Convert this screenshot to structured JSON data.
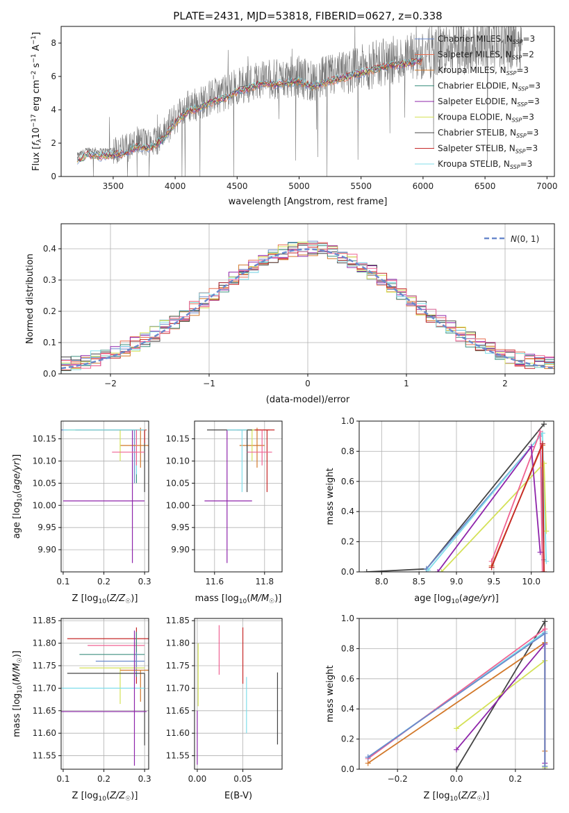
{
  "colors": {
    "Chabrier MILES": "#6a89cc",
    "Salpeter MILES": "#e76f51",
    "Kroupa MILES": "#d2782a",
    "Chabrier ELODIE": "#3b8f7f",
    "Salpeter ELODIE": "#8e24aa",
    "Kroupa ELODIE": "#d4e157",
    "Chabrier STELIB": "#444444",
    "Salpeter STELIB": "#c62828",
    "Kroupa STELIB": "#80deea",
    "Pink": "#f06292"
  },
  "chart_data": [
    {
      "id": "spectrum",
      "type": "line",
      "title": "PLATE=2431, MJD=53818, FIBERID=0627, z=0.338",
      "xlabel": "wavelength [Angstrom, rest frame]",
      "ylabel": "Flux [f_λ10^-17 erg cm^-2 s^-1 A^-1]",
      "xlim": [
        3080,
        7060
      ],
      "ylim": [
        0,
        9
      ],
      "xticks": [
        3500,
        4000,
        4500,
        5000,
        5500,
        6000,
        6500,
        7000
      ],
      "yticks": [
        0,
        2,
        4,
        6,
        8
      ],
      "grid": false,
      "legend_placement": "top-right",
      "data_envelope": {
        "x": [
          3200,
          3300,
          3400,
          3500,
          3600,
          3700,
          3800,
          3900,
          4000,
          4100,
          4200,
          4300,
          4400,
          4500,
          4600,
          4700,
          4800,
          4900,
          5000,
          5100,
          5200,
          5300,
          5400,
          5500,
          5600,
          5700,
          5800,
          5900,
          6000,
          6100,
          6200,
          6300,
          6400,
          6500,
          6600,
          6700,
          6800
        ],
        "y": [
          1.2,
          1.6,
          1.5,
          1.6,
          1.7,
          2.1,
          2.0,
          2.5,
          3.5,
          4.2,
          4.4,
          4.8,
          5.0,
          5.4,
          5.6,
          5.9,
          5.8,
          5.9,
          6.0,
          5.7,
          5.9,
          6.1,
          6.3,
          6.5,
          6.7,
          6.9,
          7.0,
          7.1,
          7.3,
          7.5,
          7.6,
          7.7,
          7.8,
          7.9,
          8.0,
          8.1,
          8.2
        ]
      },
      "series": [
        {
          "name": "Chabrier MILES, N_SSP=3"
        },
        {
          "name": "Salpeter MILES, N_SSP=2"
        },
        {
          "name": "Kroupa MILES, N_SSP=3"
        },
        {
          "name": "Chabrier ELODIE, N_SSP=3"
        },
        {
          "name": "Salpeter ELODIE, N_SSP=3"
        },
        {
          "name": "Kroupa ELODIE, N_SSP=3"
        },
        {
          "name": "Chabrier STELIB, N_SSP=3"
        },
        {
          "name": "Salpeter STELIB, N_SSP=3"
        },
        {
          "name": "Kroupa STELIB, N_SSP=3"
        }
      ]
    },
    {
      "id": "residuals",
      "type": "histogram",
      "xlabel": "(data-model)/error",
      "ylabel": "Normed distribution",
      "xlim": [
        -2.5,
        2.5
      ],
      "ylim": [
        0,
        0.48
      ],
      "xticks": [
        -2,
        -1,
        0,
        1,
        2
      ],
      "yticks": [
        0.0,
        0.1,
        0.2,
        0.3,
        0.4
      ],
      "grid": true,
      "legend": "N(0,1)",
      "legend_placement": "top-right"
    },
    {
      "id": "age_vs_Z",
      "type": "scatter",
      "xlabel": "Z [log10(Z/Z☉)]",
      "ylabel": "age  [log10(age/yr)]",
      "xlim": [
        0.095,
        0.31
      ],
      "ylim": [
        9.85,
        10.19
      ],
      "xticks": [
        0.1,
        0.2,
        0.3
      ],
      "yticks": [
        9.9,
        9.95,
        10.0,
        10.05,
        10.1,
        10.15
      ],
      "grid": true,
      "points": [
        {
          "c": "Chabrier MILES",
          "x": 0.275,
          "y": 10.17,
          "xerr": [
            0.18,
            0.03
          ],
          "yerr": [
            0.12,
            0.0
          ]
        },
        {
          "c": "Salpeter MILES",
          "x": 0.275,
          "y": 10.17,
          "xerr": [
            0.14,
            0.03
          ],
          "yerr": [
            0.0,
            0.0
          ]
        },
        {
          "c": "Kroupa MILES",
          "x": 0.29,
          "y": 10.135,
          "xerr": [
            0.05,
            0.02
          ],
          "yerr": [
            0.05,
            0.04
          ]
        },
        {
          "c": "Chabrier ELODIE",
          "x": 0.28,
          "y": 10.17,
          "xerr": [
            0.15,
            0.02
          ],
          "yerr": [
            0.12,
            0.0
          ]
        },
        {
          "c": "Salpeter ELODIE",
          "x": 0.27,
          "y": 10.01,
          "xerr": [
            0.17,
            0.03
          ],
          "yerr": [
            0.14,
            0.16
          ]
        },
        {
          "c": "Kroupa ELODIE",
          "x": 0.24,
          "y": 10.17,
          "xerr": [
            0.13,
            0.05
          ],
          "yerr": [
            0.07,
            0.0
          ]
        },
        {
          "c": "Chabrier STELIB",
          "x": 0.3,
          "y": 10.17,
          "xerr": [
            0.17,
            0.0
          ],
          "yerr": [
            0.14,
            0.0
          ]
        },
        {
          "c": "Salpeter STELIB",
          "x": 0.3,
          "y": 10.17,
          "xerr": [
            0.02,
            0.0
          ],
          "yerr": [
            0.03,
            0.0
          ]
        },
        {
          "c": "Kroupa STELIB",
          "x": 0.28,
          "y": 10.17,
          "xerr": [
            0.18,
            0.02
          ],
          "yerr": [
            0.1,
            0.0
          ]
        },
        {
          "c": "Pink",
          "x": 0.28,
          "y": 10.12,
          "xerr": [
            0.06,
            0.02
          ],
          "yerr": [
            0.03,
            0.05
          ]
        }
      ]
    },
    {
      "id": "age_vs_mass",
      "type": "scatter",
      "xlabel": "mass [log10(M/M☉)]",
      "xlim": [
        11.52,
        11.87
      ],
      "ylim": [
        9.85,
        10.19
      ],
      "xticks": [
        11.6,
        11.8
      ],
      "yticks": [
        9.9,
        9.95,
        10.0,
        10.05,
        10.1,
        10.15
      ],
      "grid": true,
      "points": [
        {
          "c": "Chabrier MILES",
          "x": 11.73,
          "y": 10.17,
          "xerr": [
            0.03,
            0.03
          ],
          "yerr": [
            0.12,
            0.0
          ]
        },
        {
          "c": "Salpeter MILES",
          "x": 11.8,
          "y": 10.17,
          "xerr": [
            0.05,
            0.02
          ],
          "yerr": [
            0.0,
            0.0
          ]
        },
        {
          "c": "Kroupa MILES",
          "x": 11.77,
          "y": 10.135,
          "xerr": [
            0.07,
            0.03
          ],
          "yerr": [
            0.05,
            0.04
          ]
        },
        {
          "c": "Chabrier ELODIE",
          "x": 11.73,
          "y": 10.17,
          "xerr": [
            0.04,
            0.03
          ],
          "yerr": [
            0.12,
            0.0
          ]
        },
        {
          "c": "Salpeter ELODIE",
          "x": 11.65,
          "y": 10.01,
          "xerr": [
            0.09,
            0.1
          ],
          "yerr": [
            0.14,
            0.16
          ]
        },
        {
          "c": "Kroupa ELODIE",
          "x": 11.75,
          "y": 10.17,
          "xerr": [
            0.04,
            0.01
          ],
          "yerr": [
            0.07,
            0.0
          ]
        },
        {
          "c": "Chabrier STELIB",
          "x": 11.73,
          "y": 10.17,
          "xerr": [
            0.16,
            0.02
          ],
          "yerr": [
            0.14,
            0.0
          ]
        },
        {
          "c": "Salpeter STELIB",
          "x": 11.81,
          "y": 10.17,
          "xerr": [
            0.05,
            0.03
          ],
          "yerr": [
            0.14,
            0.0
          ]
        },
        {
          "c": "Kroupa STELIB",
          "x": 11.71,
          "y": 10.17,
          "xerr": [
            0.06,
            0.02
          ],
          "yerr": [
            0.14,
            0.0
          ]
        },
        {
          "c": "Pink",
          "x": 11.79,
          "y": 10.12,
          "xerr": [
            0.06,
            0.04
          ],
          "yerr": [
            0.03,
            0.05
          ]
        }
      ]
    },
    {
      "id": "weight_vs_age",
      "type": "line",
      "xlabel": "age  [log10(age/yr)]",
      "ylabel": "mass weight",
      "xlim": [
        7.7,
        10.3
      ],
      "ylim": [
        0,
        1.0
      ],
      "xticks": [
        8.0,
        8.5,
        9.0,
        9.5,
        10.0
      ],
      "yticks": [
        0.0,
        0.2,
        0.4,
        0.6,
        0.8,
        1.0
      ],
      "grid": true,
      "series": [
        {
          "c": "Chabrier STELIB",
          "x": [
            7.8,
            8.6,
            10.17
          ],
          "y": [
            0.0,
            0.02,
            0.98
          ]
        },
        {
          "c": "Chabrier MILES",
          "x": [
            8.6,
            10.12,
            10.17
          ],
          "y": [
            0.02,
            0.9,
            0.08
          ]
        },
        {
          "c": "Kroupa STELIB",
          "x": [
            8.62,
            10.15,
            10.2
          ],
          "y": [
            0.01,
            0.92,
            0.07
          ]
        },
        {
          "c": "Kroupa ELODIE",
          "x": [
            8.8,
            10.17,
            10.2
          ],
          "y": [
            0.0,
            0.72,
            0.27
          ]
        },
        {
          "c": "Kroupa MILES",
          "x": [
            9.47,
            10.15,
            10.17
          ],
          "y": [
            0.04,
            0.84,
            0.0
          ]
        },
        {
          "c": "Pink",
          "x": [
            9.47,
            10.12,
            10.15
          ],
          "y": [
            0.07,
            0.93,
            0.0
          ]
        },
        {
          "c": "Salpeter ELODIE",
          "x": [
            8.75,
            10.0,
            10.12
          ],
          "y": [
            0.0,
            0.83,
            0.13
          ]
        },
        {
          "c": "Salpeter STELIB",
          "x": [
            9.47,
            10.15,
            10.17
          ],
          "y": [
            0.03,
            0.85,
            0.0
          ]
        }
      ]
    },
    {
      "id": "mass_vs_Z",
      "type": "scatter",
      "xlabel": "Z [log10(Z/Z☉)]",
      "ylabel": "mass [log10(M/M☉)]",
      "xlim": [
        0.095,
        0.31
      ],
      "ylim": [
        11.52,
        11.855
      ],
      "xticks": [
        0.1,
        0.2,
        0.3
      ],
      "yticks": [
        11.55,
        11.6,
        11.65,
        11.7,
        11.75,
        11.8,
        11.85
      ],
      "grid": true,
      "points": [
        {
          "c": "Salpeter STELIB",
          "x": 0.28,
          "y": 11.81,
          "xerr": [
            0.17,
            0.03
          ],
          "yerr": [
            0.1,
            0.025
          ]
        },
        {
          "c": "Pink",
          "x": 0.28,
          "y": 11.795,
          "xerr": [
            0.12,
            0.02
          ],
          "yerr": [
            0.06,
            0.03
          ]
        },
        {
          "c": "Chabrier ELODIE",
          "x": 0.28,
          "y": 11.775,
          "xerr": [
            0.14,
            0.02
          ],
          "yerr": [
            0.05,
            0.05
          ]
        },
        {
          "c": "Chabrier MILES",
          "x": 0.28,
          "y": 11.76,
          "xerr": [
            0.1,
            0.02
          ],
          "yerr": [
            0.03,
            0.02
          ]
        },
        {
          "c": "Kroupa ELODIE",
          "x": 0.24,
          "y": 11.745,
          "xerr": [
            0.1,
            0.06
          ],
          "yerr": [
            0.08,
            0.0
          ]
        },
        {
          "c": "Kroupa MILES",
          "x": 0.29,
          "y": 11.74,
          "xerr": [
            0.05,
            0.02
          ],
          "yerr": [
            0.07,
            0.0
          ]
        },
        {
          "c": "Chabrier STELIB",
          "x": 0.3,
          "y": 11.733,
          "xerr": [
            0.19,
            0.0
          ],
          "yerr": [
            0.16,
            0.0
          ]
        },
        {
          "c": "Kroupa STELIB",
          "x": 0.28,
          "y": 11.7,
          "xerr": [
            0.19,
            0.02
          ],
          "yerr": [
            0.0,
            0.0
          ]
        },
        {
          "c": "Salpeter ELODIE",
          "x": 0.275,
          "y": 11.648,
          "xerr": [
            0.18,
            0.03
          ],
          "yerr": [
            0.12,
            0.18
          ]
        }
      ]
    },
    {
      "id": "mass_vs_ebv",
      "type": "scatter",
      "xlabel": "E(B-V)",
      "xlim": [
        -0.003,
        0.093
      ],
      "ylim": [
        11.52,
        11.855
      ],
      "xticks": [
        0.0,
        0.05
      ],
      "yticks": [
        11.55,
        11.6,
        11.65,
        11.7,
        11.75,
        11.8,
        11.85
      ],
      "grid": true,
      "points": [
        {
          "c": "Salpeter ELODIE",
          "x": 0.0,
          "y": 11.62,
          "yerr": [
            0.09,
            0.03
          ]
        },
        {
          "c": "Kroupa ELODIE",
          "x": 0.001,
          "y": 11.74,
          "yerr": [
            0.08,
            0.06
          ]
        },
        {
          "c": "Pink",
          "x": 0.024,
          "y": 11.79,
          "yerr": [
            0.06,
            0.05
          ]
        },
        {
          "c": "Salpeter STELIB",
          "x": 0.05,
          "y": 11.78,
          "yerr": [
            0.07,
            0.055
          ]
        },
        {
          "c": "Kroupa STELIB",
          "x": 0.054,
          "y": 11.68,
          "yerr": [
            0.08,
            0.045
          ]
        },
        {
          "c": "Chabrier STELIB",
          "x": 0.088,
          "y": 11.65,
          "yerr": [
            0.075,
            0.085
          ]
        }
      ]
    },
    {
      "id": "weight_vs_Z",
      "type": "line",
      "xlabel": "Z [log10(Z/Z☉)]",
      "ylabel": "mass weight",
      "xlim": [
        -0.33,
        0.33
      ],
      "ylim": [
        0,
        1.0
      ],
      "xticks": [
        -0.2,
        0.0,
        0.2
      ],
      "yticks": [
        0.0,
        0.2,
        0.4,
        0.6,
        0.8,
        1.0
      ],
      "grid": true,
      "series": [
        {
          "c": "Chabrier STELIB",
          "x": [
            0.0,
            0.3,
            0.3
          ],
          "y": [
            0.0,
            0.98,
            0.02
          ]
        },
        {
          "c": "Kroupa STELIB",
          "x": [
            -0.3,
            0.3,
            0.3
          ],
          "y": [
            0.08,
            0.91,
            0.01
          ]
        },
        {
          "c": "Pink",
          "x": [
            -0.3,
            0.3,
            0.3
          ],
          "y": [
            0.07,
            0.93,
            0.0
          ]
        },
        {
          "c": "Kroupa MILES",
          "x": [
            -0.3,
            0.3,
            0.3
          ],
          "y": [
            0.04,
            0.84,
            0.12
          ]
        },
        {
          "c": "Kroupa ELODIE",
          "x": [
            0.0,
            0.3,
            0.3
          ],
          "y": [
            0.27,
            0.72,
            0.01
          ]
        },
        {
          "c": "Salpeter ELODIE",
          "x": [
            0.0,
            0.3,
            0.3
          ],
          "y": [
            0.13,
            0.83,
            0.04
          ]
        },
        {
          "c": "Chabrier MILES",
          "x": [
            -0.3,
            0.3,
            0.3
          ],
          "y": [
            0.08,
            0.9,
            0.02
          ]
        }
      ]
    }
  ]
}
